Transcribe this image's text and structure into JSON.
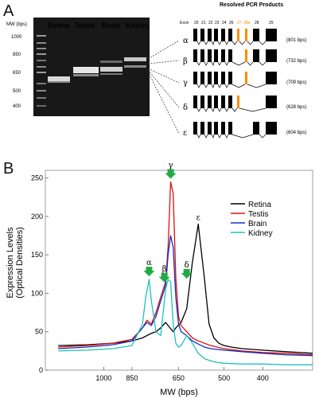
{
  "panelA": {
    "label": "A",
    "mw_label": "MW (bps)",
    "ladder": [
      "1000",
      "850",
      "650",
      "500",
      "400"
    ],
    "lanes": [
      "Retina",
      "Testis",
      "Brain",
      "Kidney"
    ],
    "resolved_title": "Resolved PCR Products",
    "exon_header": [
      "Exon",
      "20",
      "21",
      "22",
      "23",
      "24",
      "26",
      "27",
      "28a",
      "28",
      "29"
    ],
    "isoforms": [
      {
        "greek": "α",
        "size": "(801 bps)"
      },
      {
        "greek": "β",
        "size": "(732 bps)"
      },
      {
        "greek": "γ",
        "size": "(709 bps)"
      },
      {
        "greek": "δ",
        "size": "(628 bps)"
      },
      {
        "greek": "ε",
        "size": "(604 bps)"
      }
    ]
  },
  "panelB": {
    "label": "B",
    "ylabel": "Expression Levels",
    "ylabel2": "(Optical Densities)",
    "xlabel": "MW (bps)"
  },
  "colors": {
    "retina": "#000000",
    "testis": "#e01010",
    "brain": "#1030c0",
    "kidney": "#20c0c0",
    "arrow": "#22aa44",
    "exon_highlight": "#ff8c00"
  },
  "chart_data": {
    "type": "line",
    "xlabel": "MW (bps)",
    "ylabel": "Expression Levels (Optical Densities)",
    "x_ticks": [
      "1000",
      "850",
      "650",
      "500",
      "400"
    ],
    "y_ticks": [
      0,
      50,
      100,
      150,
      200,
      250
    ],
    "ylim": [
      0,
      260
    ],
    "x_axis_reversed": true,
    "legend_position": "top-right",
    "peak_labels": [
      "α",
      "β",
      "γ",
      "δ",
      "ε"
    ],
    "series": [
      {
        "name": "Retina",
        "color": "#000000",
        "x": [
          1300,
          1100,
          950,
          850,
          800,
          760,
          740,
          720,
          700,
          690,
          670,
          660,
          640,
          620,
          600,
          580,
          560,
          545,
          530,
          515,
          500,
          480,
          450,
          400,
          350,
          300
        ],
        "y": [
          32,
          33,
          35,
          38,
          42,
          48,
          50,
          55,
          62,
          58,
          50,
          55,
          62,
          80,
          140,
          190,
          120,
          60,
          42,
          35,
          32,
          30,
          28,
          26,
          24,
          22
        ]
      },
      {
        "name": "Testis",
        "color": "#e01010",
        "x": [
          1300,
          1100,
          950,
          850,
          800,
          780,
          760,
          740,
          720,
          700,
          690,
          680,
          670,
          660,
          650,
          640,
          620,
          600,
          580,
          560,
          540,
          500,
          450,
          400,
          350,
          300
        ],
        "y": [
          30,
          32,
          35,
          40,
          55,
          65,
          60,
          75,
          95,
          115,
          160,
          245,
          230,
          120,
          70,
          58,
          50,
          42,
          38,
          35,
          32,
          28,
          25,
          23,
          22,
          20
        ]
      },
      {
        "name": "Brain",
        "color": "#1030c0",
        "x": [
          1300,
          1100,
          950,
          850,
          800,
          780,
          760,
          740,
          720,
          700,
          690,
          680,
          670,
          660,
          650,
          640,
          620,
          600,
          580,
          560,
          540,
          500,
          450,
          400,
          350,
          300
        ],
        "y": [
          28,
          30,
          33,
          38,
          55,
          62,
          58,
          70,
          90,
          110,
          150,
          175,
          160,
          95,
          60,
          50,
          45,
          38,
          34,
          30,
          28,
          26,
          24,
          22,
          20,
          19
        ]
      },
      {
        "name": "Kidney",
        "color": "#20c0c0",
        "x": [
          1300,
          1100,
          950,
          850,
          800,
          785,
          770,
          760,
          740,
          720,
          700,
          690,
          680,
          670,
          660,
          650,
          640,
          620,
          600,
          580,
          560,
          540,
          520,
          500,
          450,
          400,
          350,
          300
        ],
        "y": [
          25,
          26,
          28,
          32,
          60,
          95,
          118,
          90,
          50,
          45,
          105,
          118,
          115,
          60,
          35,
          30,
          32,
          45,
          35,
          22,
          15,
          12,
          10,
          9,
          8,
          8,
          7,
          7
        ]
      }
    ]
  }
}
